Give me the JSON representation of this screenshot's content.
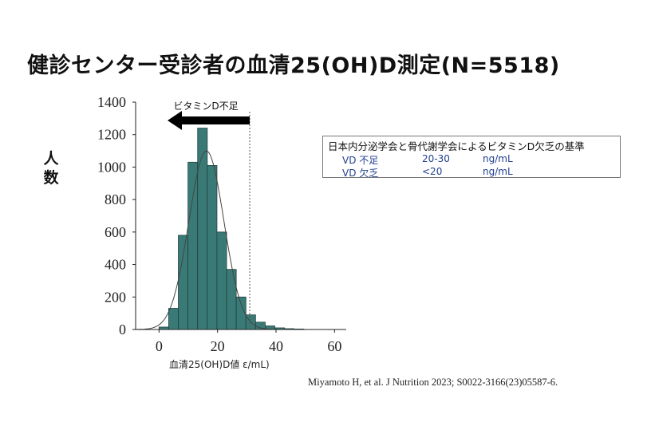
{
  "title": "健診センター受診者の血清25(OH)D測定(N=5518)",
  "ylabel_chars": [
    "人",
    "数"
  ],
  "xlabel": "血清25(OH)D値  ε/mL)",
  "arrow_label": "ビタミンD不足",
  "legend": {
    "title": "日本内分泌学会と骨代謝学会によるビタミンD欠乏の基準",
    "rows": [
      {
        "name": "VD 不足",
        "range": "20-30",
        "unit": "ng/mL"
      },
      {
        "name": "VD 欠乏",
        "range": "<20",
        "unit": "ng/mL"
      }
    ]
  },
  "citation": "Miyamoto H, et al.  J Nutrition 2023; S0022-3166(23)05587-6.",
  "colors": {
    "bar": "#3a7a76",
    "bar_edge": "#1f3f3d",
    "arrow": "#000000"
  },
  "chart_data": {
    "type": "bar",
    "title": "健診センター受診者の血清25(OH)D測定(N=5518)",
    "xlabel": "血清25(OH)D値  ε/mL)",
    "ylabel": "人数",
    "xlim": [
      -8,
      64
    ],
    "ylim": [
      0,
      1400
    ],
    "xticks": [
      0,
      20,
      40,
      60
    ],
    "yticks": [
      0,
      200,
      400,
      600,
      800,
      1000,
      1200,
      1400
    ],
    "bin_width": 3.3,
    "bins": [
      {
        "start": 0,
        "value": 15
      },
      {
        "start": 3.3,
        "value": 130
      },
      {
        "start": 6.6,
        "value": 580
      },
      {
        "start": 9.9,
        "value": 1030
      },
      {
        "start": 13.2,
        "value": 1240
      },
      {
        "start": 16.5,
        "value": 1010
      },
      {
        "start": 19.8,
        "value": 600
      },
      {
        "start": 23.1,
        "value": 370
      },
      {
        "start": 26.4,
        "value": 200
      },
      {
        "start": 29.7,
        "value": 90
      },
      {
        "start": 33.0,
        "value": 45
      },
      {
        "start": 36.3,
        "value": 22
      },
      {
        "start": 39.6,
        "value": 10
      },
      {
        "start": 42.9,
        "value": 5
      },
      {
        "start": 46.2,
        "value": 3
      }
    ],
    "normal_curve": {
      "mean": 16.2,
      "sd": 6.0,
      "peak": 1100
    },
    "reference_line_x": 31,
    "grid": false
  }
}
